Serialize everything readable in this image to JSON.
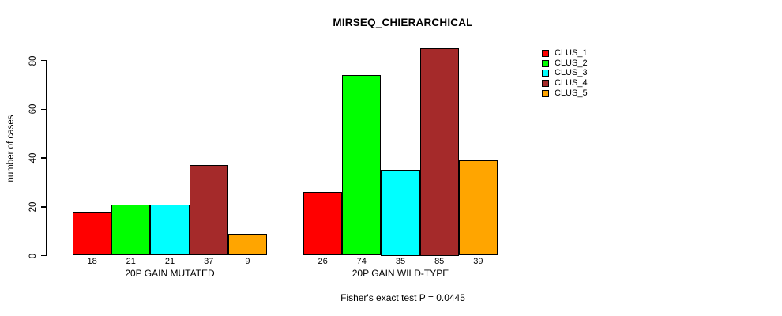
{
  "chart_data": {
    "type": "bar",
    "title": "MIRSEQ_CHIERARCHICAL",
    "ylabel": "number of cases",
    "xlabel": "",
    "footnote": "Fisher's exact test P = 0.0445",
    "ylim": [
      0,
      85
    ],
    "yticks": [
      0,
      20,
      40,
      60,
      80
    ],
    "grid": false,
    "legend_position": "right",
    "bar_value_labels_shown": true,
    "categories": [
      "20P GAIN MUTATED",
      "20P GAIN WILD-TYPE"
    ],
    "series": [
      {
        "name": "CLUS_1",
        "color": "#FF0000",
        "values": [
          18,
          26
        ]
      },
      {
        "name": "CLUS_2",
        "color": "#00FF00",
        "values": [
          21,
          74
        ]
      },
      {
        "name": "CLUS_3",
        "color": "#00FFFF",
        "values": [
          21,
          35
        ]
      },
      {
        "name": "CLUS_4",
        "color": "#A52A2A",
        "values": [
          37,
          85
        ]
      },
      {
        "name": "CLUS_5",
        "color": "#FFA500",
        "values": [
          9,
          39
        ]
      }
    ],
    "axis_color": "#000000",
    "background_color": "#FFFFFF"
  }
}
